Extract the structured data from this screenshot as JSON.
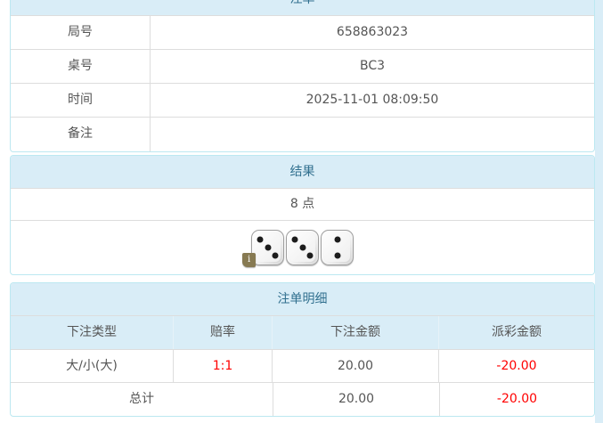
{
  "colors": {
    "heading_bg": "#d9edf7",
    "heading_text": "#31708f",
    "panel_border": "#bce8f1",
    "grid_border": "#dddddd",
    "body_text": "#555555",
    "negative_text": "#ff0000",
    "badge_bg": "#877a52"
  },
  "bet_panel": {
    "title": "注单",
    "rows": [
      {
        "label": "局号",
        "value": "658863023"
      },
      {
        "label": "桌号",
        "value": "BC3"
      },
      {
        "label": "时间",
        "value": "2025-11-01 08:09:50"
      },
      {
        "label": "备注",
        "value": ""
      }
    ]
  },
  "result_panel": {
    "title": "结果",
    "points": "8 点",
    "dice": [
      3,
      3,
      2
    ],
    "info_badge": "i"
  },
  "detail_panel": {
    "title": "注单明细",
    "columns": [
      "下注类型",
      "赔率",
      "下注金额",
      "派彩金额"
    ],
    "rows": [
      {
        "type": "大/小(大)",
        "odds": "1:1",
        "bet": "20.00",
        "payout": "-20.00"
      }
    ],
    "total": {
      "label": "总计",
      "bet": "20.00",
      "payout": "-20.00"
    }
  }
}
